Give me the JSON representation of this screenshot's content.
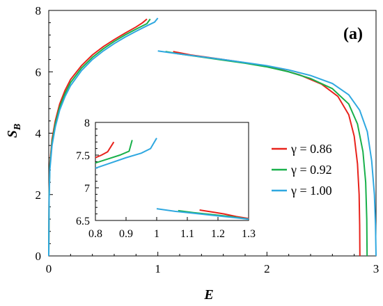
{
  "chart_data": [
    {
      "type": "line",
      "panel_label": "(a)",
      "xlabel": "E",
      "ylabel_main": "S",
      "ylabel_sub": "B",
      "xlim": [
        0,
        3
      ],
      "ylim": [
        0,
        8
      ],
      "xticks": [
        0,
        1,
        2,
        3
      ],
      "yticks": [
        0,
        2,
        4,
        6,
        8
      ],
      "legend_position": "right",
      "series": [
        {
          "name": "γ = 0.86",
          "color": "#e8221b",
          "segments": [
            [
              [
                0.0,
                0.0
              ],
              [
                0.003,
                2.0
              ],
              [
                0.01,
                3.0
              ],
              [
                0.03,
                3.8
              ],
              [
                0.06,
                4.4
              ],
              [
                0.1,
                4.95
              ],
              [
                0.15,
                5.4
              ],
              [
                0.2,
                5.75
              ],
              [
                0.3,
                6.2
              ],
              [
                0.4,
                6.55
              ],
              [
                0.5,
                6.82
              ],
              [
                0.6,
                7.05
              ],
              [
                0.7,
                7.26
              ],
              [
                0.8,
                7.46
              ],
              [
                0.86,
                7.6
              ],
              [
                0.9,
                7.72
              ]
            ],
            [
              [
                1.14,
                6.66
              ],
              [
                1.3,
                6.55
              ],
              [
                1.5,
                6.45
              ],
              [
                1.7,
                6.35
              ],
              [
                1.9,
                6.24
              ],
              [
                2.1,
                6.1
              ],
              [
                2.3,
                5.9
              ],
              [
                2.5,
                5.6
              ],
              [
                2.65,
                5.2
              ],
              [
                2.75,
                4.6
              ],
              [
                2.8,
                3.9
              ],
              [
                2.83,
                3.0
              ],
              [
                2.845,
                2.0
              ],
              [
                2.85,
                1.0
              ],
              [
                2.852,
                0.0
              ]
            ]
          ]
        },
        {
          "name": "γ = 0.92",
          "color": "#18b04a",
          "segments": [
            [
              [
                0.0,
                0.0
              ],
              [
                0.003,
                1.9
              ],
              [
                0.01,
                2.9
              ],
              [
                0.03,
                3.7
              ],
              [
                0.06,
                4.3
              ],
              [
                0.1,
                4.85
              ],
              [
                0.15,
                5.3
              ],
              [
                0.2,
                5.65
              ],
              [
                0.3,
                6.12
              ],
              [
                0.4,
                6.47
              ],
              [
                0.5,
                6.75
              ],
              [
                0.6,
                6.99
              ],
              [
                0.7,
                7.2
              ],
              [
                0.8,
                7.39
              ],
              [
                0.9,
                7.57
              ],
              [
                0.93,
                7.72
              ]
            ],
            [
              [
                1.07,
                6.66
              ],
              [
                1.2,
                6.58
              ],
              [
                1.4,
                6.48
              ],
              [
                1.6,
                6.38
              ],
              [
                1.8,
                6.28
              ],
              [
                2.0,
                6.16
              ],
              [
                2.2,
                6.0
              ],
              [
                2.4,
                5.78
              ],
              [
                2.6,
                5.45
              ],
              [
                2.75,
                4.95
              ],
              [
                2.83,
                4.3
              ],
              [
                2.88,
                3.4
              ],
              [
                2.905,
                2.4
              ],
              [
                2.915,
                1.2
              ],
              [
                2.918,
                0.0
              ]
            ]
          ]
        },
        {
          "name": "γ = 1.00",
          "color": "#2fa8e0",
          "segments": [
            [
              [
                0.0,
                0.0
              ],
              [
                0.003,
                1.8
              ],
              [
                0.01,
                2.8
              ],
              [
                0.03,
                3.6
              ],
              [
                0.06,
                4.2
              ],
              [
                0.1,
                4.75
              ],
              [
                0.15,
                5.2
              ],
              [
                0.2,
                5.55
              ],
              [
                0.3,
                6.04
              ],
              [
                0.4,
                6.4
              ],
              [
                0.5,
                6.68
              ],
              [
                0.6,
                6.92
              ],
              [
                0.7,
                7.13
              ],
              [
                0.8,
                7.32
              ],
              [
                0.9,
                7.5
              ],
              [
                0.97,
                7.62
              ],
              [
                1.0,
                7.75
              ]
            ],
            [
              [
                1.0,
                6.68
              ],
              [
                1.2,
                6.58
              ],
              [
                1.4,
                6.49
              ],
              [
                1.6,
                6.4
              ],
              [
                1.8,
                6.3
              ],
              [
                2.0,
                6.2
              ],
              [
                2.2,
                6.06
              ],
              [
                2.4,
                5.88
              ],
              [
                2.6,
                5.62
              ],
              [
                2.75,
                5.25
              ],
              [
                2.85,
                4.75
              ],
              [
                2.92,
                4.05
              ],
              [
                2.96,
                3.1
              ],
              [
                2.985,
                2.0
              ],
              [
                2.995,
                1.0
              ],
              [
                3.0,
                0.0
              ]
            ]
          ]
        }
      ]
    },
    {
      "type": "line",
      "role": "inset",
      "xlim": [
        0.8,
        1.3
      ],
      "ylim": [
        6.5,
        8
      ],
      "xticks": [
        0.8,
        0.9,
        1,
        1.1,
        1.2,
        1.3
      ],
      "xtick_labels": [
        "0.8",
        "0.9",
        "1",
        "1.1",
        "1.2",
        "1.3"
      ],
      "yticks": [
        6.5,
        7,
        7.5,
        8
      ],
      "ytick_labels": [
        "6.5",
        "7",
        "7.5",
        "8"
      ],
      "series": [
        {
          "name": "γ = 0.86",
          "color": "#e8221b",
          "segments": [
            [
              [
                0.8,
                7.46
              ],
              [
                0.82,
                7.5
              ],
              [
                0.84,
                7.55
              ],
              [
                0.86,
                7.7
              ]
            ],
            [
              [
                1.14,
                6.66
              ],
              [
                1.18,
                6.63
              ],
              [
                1.22,
                6.6
              ],
              [
                1.26,
                6.56
              ],
              [
                1.3,
                6.53
              ]
            ]
          ]
        },
        {
          "name": "γ = 0.92",
          "color": "#18b04a",
          "segments": [
            [
              [
                0.8,
                7.38
              ],
              [
                0.84,
                7.44
              ],
              [
                0.88,
                7.5
              ],
              [
                0.91,
                7.56
              ],
              [
                0.92,
                7.73
              ]
            ],
            [
              [
                1.07,
                6.65
              ],
              [
                1.12,
                6.62
              ],
              [
                1.18,
                6.59
              ],
              [
                1.24,
                6.56
              ],
              [
                1.3,
                6.52
              ]
            ]
          ]
        },
        {
          "name": "γ = 1.00",
          "color": "#2fa8e0",
          "segments": [
            [
              [
                0.8,
                7.3
              ],
              [
                0.85,
                7.38
              ],
              [
                0.9,
                7.46
              ],
              [
                0.95,
                7.53
              ],
              [
                0.98,
                7.6
              ],
              [
                1.0,
                7.76
              ]
            ],
            [
              [
                1.0,
                6.68
              ],
              [
                1.06,
                6.64
              ],
              [
                1.12,
                6.61
              ],
              [
                1.18,
                6.58
              ],
              [
                1.24,
                6.55
              ],
              [
                1.3,
                6.52
              ]
            ]
          ]
        }
      ]
    }
  ]
}
